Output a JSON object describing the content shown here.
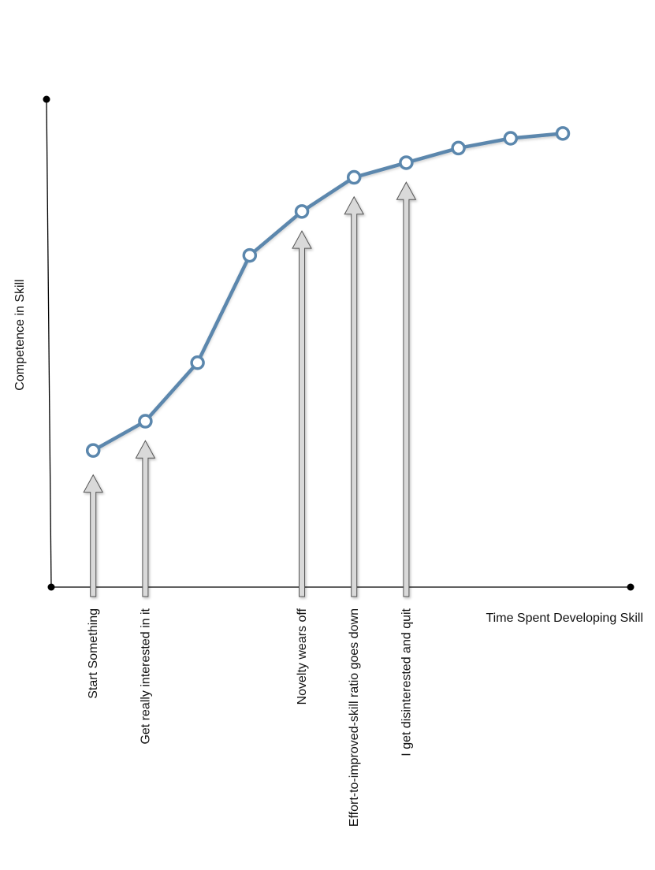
{
  "chart_data": {
    "type": "line",
    "title": "",
    "xlabel": "Time Spent Developing Skill",
    "ylabel": "Competence in Skill",
    "xlim": [
      0,
      11
    ],
    "ylim": [
      0,
      10
    ],
    "grid": false,
    "series": [
      {
        "x": [
          1,
          2,
          3,
          4,
          5,
          6,
          7,
          8,
          9,
          10
        ],
        "values": [
          2.8,
          3.4,
          4.6,
          6.8,
          7.7,
          8.4,
          8.7,
          9.0,
          9.2,
          9.3
        ]
      }
    ],
    "annotations": [
      {
        "text": "Start Something",
        "x": 1,
        "arrow_top": 2.3
      },
      {
        "text": "Get really interested in it",
        "x": 2,
        "arrow_top": 3.0
      },
      {
        "text": "Novelty wears off",
        "x": 5,
        "arrow_top": 7.3
      },
      {
        "text": "Effort-to-improved-skill ratio goes down",
        "x": 6,
        "arrow_top": 8.0
      },
      {
        "text": "I get disinterested and quit",
        "x": 7,
        "arrow_top": 8.3
      }
    ],
    "colors": {
      "line": "#5b87ad",
      "marker_fill": "#ffffff",
      "arrow_fill": "#d9d9d9",
      "arrow_stroke": "#555555",
      "axis": "#000000"
    }
  }
}
